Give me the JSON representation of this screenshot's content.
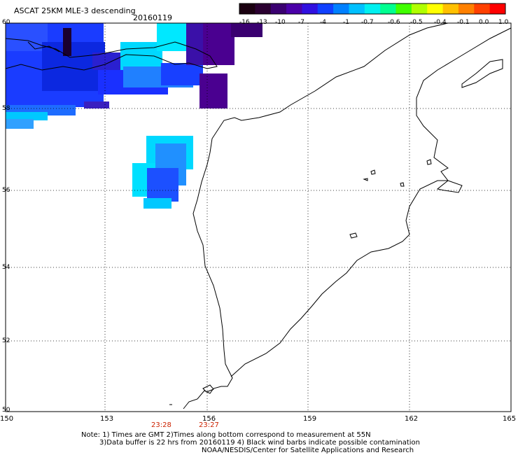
{
  "header": {
    "title": "ASCAT 25KM MLE-3 descending",
    "date": "20160119"
  },
  "colorbar": {
    "labels": [
      "-16",
      "-13",
      "-10",
      "-7",
      "-4",
      "-1",
      "-0.7",
      "-0.6",
      "-0.5",
      "-0.4",
      "-0.1",
      "0.0",
      "1.0"
    ],
    "colors": [
      "#1a0010",
      "#2a0030",
      "#3a0070",
      "#4a00a8",
      "#3010e0",
      "#1040ff",
      "#0080ff",
      "#00c0ff",
      "#00f0f0",
      "#00ff90",
      "#40ff00",
      "#b0ff00",
      "#ffff00",
      "#ffc000",
      "#ff8000",
      "#ff4000",
      "#ff0000"
    ]
  },
  "map": {
    "lat_labels": [
      "60",
      "58",
      "56",
      "54",
      "52",
      "50"
    ],
    "lon_labels": [
      "150",
      "153",
      "156",
      "159",
      "162",
      "165"
    ],
    "time_labels": [
      "23:28",
      "23:27"
    ]
  },
  "footer": {
    "line1": "Note: 1) Times are GMT 2)Times along bottom correspond to measurement at 55N",
    "line2": "3)Data buffer is 22 hrs from 20160119 4) Black wind barbs indicate possible contamination",
    "line3": "NOAA/NESDIS/Center for Satellite Applications and Research"
  }
}
